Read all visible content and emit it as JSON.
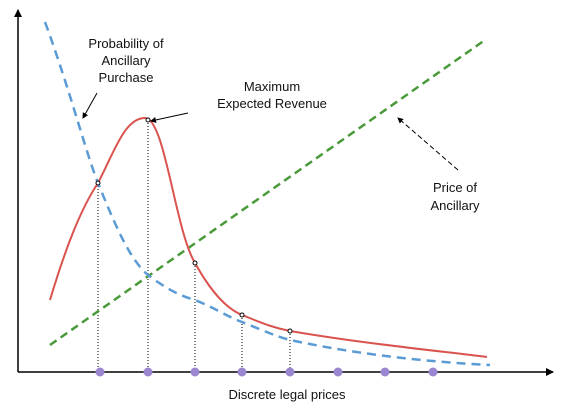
{
  "annotations": {
    "probability": [
      "Probability of",
      "Ancillary",
      "Purchase"
    ],
    "maximum": [
      "Maximum",
      "Expected Revenue"
    ],
    "price": [
      "Price of",
      "Ancillary"
    ]
  },
  "x_axis_label": "Discrete legal prices"
}
